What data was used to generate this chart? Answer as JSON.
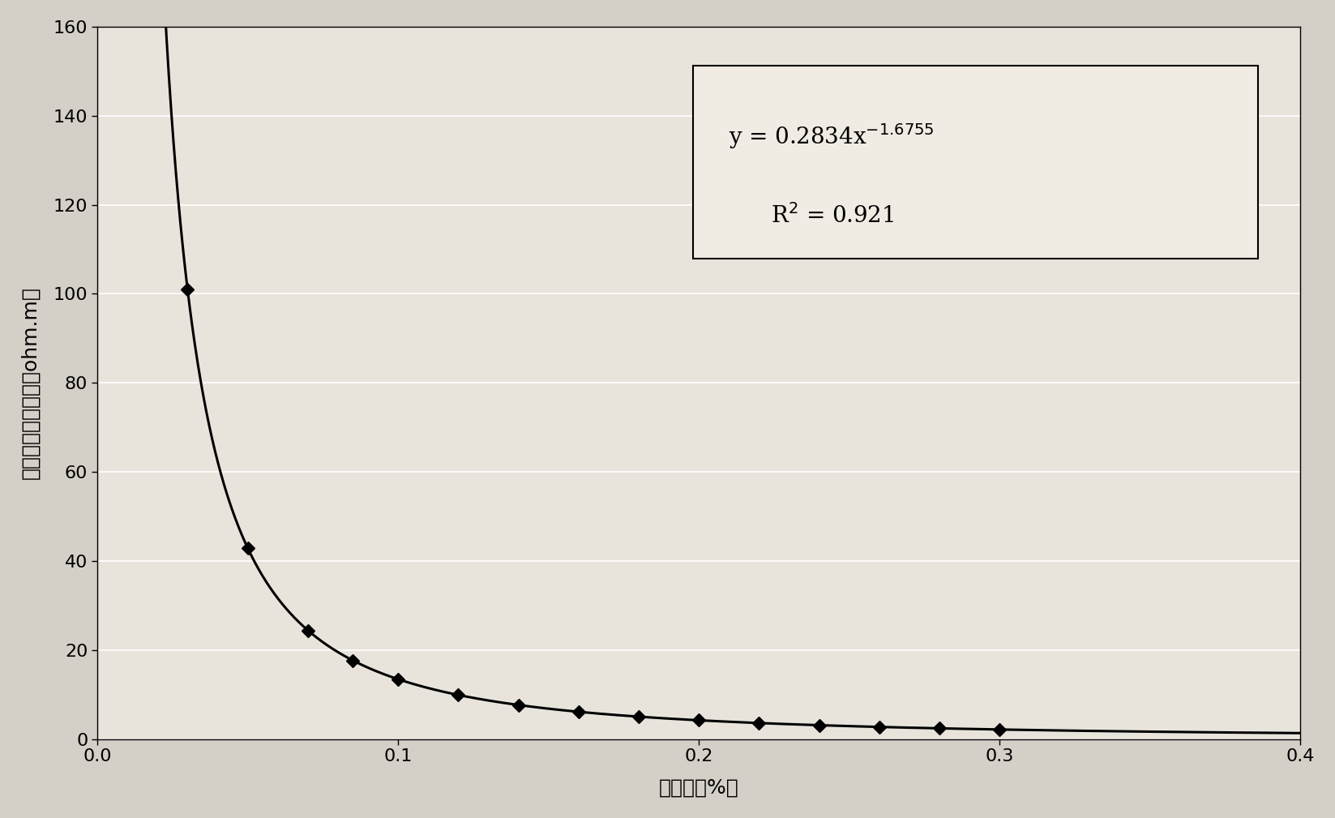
{
  "xlabel": "孔隙度（%）",
  "ylabel": "气层电阴率下限值（ohm.m）",
  "coeff": 0.2834,
  "power": -1.6755,
  "data_x": [
    0.02,
    0.03,
    0.05,
    0.07,
    0.085,
    0.1,
    0.12,
    0.14,
    0.16,
    0.18,
    0.2,
    0.22,
    0.24,
    0.26,
    0.28,
    0.3
  ],
  "xlim": [
    0.0,
    0.4
  ],
  "ylim": [
    0,
    160
  ],
  "yticks": [
    0,
    20,
    40,
    60,
    80,
    100,
    120,
    140,
    160
  ],
  "xticks": [
    0.0,
    0.1,
    0.2,
    0.3,
    0.4
  ],
  "outer_bg": "#d4d0c8",
  "plot_bg": "#e8e4dc",
  "line_color": "#000000",
  "marker_color": "#000000",
  "grid_color": "#ffffff",
  "box_fill": "#f0ece4",
  "label_fontsize": 18,
  "tick_fontsize": 16,
  "annotation_fontsize": 18
}
